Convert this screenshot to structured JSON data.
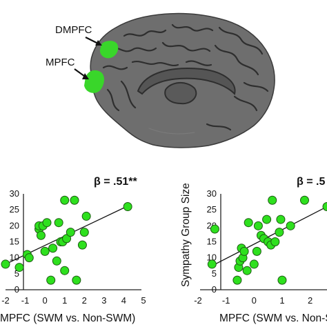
{
  "brain": {
    "regions": [
      {
        "name": "DMPFC",
        "color": "#39d62a"
      },
      {
        "name": "MPFC",
        "color": "#39d62a"
      }
    ]
  },
  "chart_data": [
    {
      "type": "scatter",
      "title": "",
      "xlabel": "MPFC (SWM vs. Non-SWM)",
      "ylabel": "",
      "annotation": "β = .51**",
      "xlim": [
        -2,
        5
      ],
      "ylim": [
        0,
        30
      ],
      "xticks": [
        -2,
        -1,
        0,
        1,
        2,
        3,
        4,
        5
      ],
      "yticks": [
        0,
        5,
        10,
        15,
        20,
        25,
        30
      ],
      "marker_color": "#2ee01e",
      "fit_line": {
        "x": [
          -2.0,
          4.2
        ],
        "y": [
          8.0,
          26.2
        ]
      },
      "points": [
        {
          "x": -2.0,
          "y": 8
        },
        {
          "x": -1.3,
          "y": 7
        },
        {
          "x": -0.9,
          "y": 11
        },
        {
          "x": -0.8,
          "y": 10
        },
        {
          "x": -0.3,
          "y": 19
        },
        {
          "x": -0.3,
          "y": 20
        },
        {
          "x": -0.2,
          "y": 17
        },
        {
          "x": -0.1,
          "y": 20
        },
        {
          "x": 0.1,
          "y": 21
        },
        {
          "x": 0.0,
          "y": 12
        },
        {
          "x": 0.3,
          "y": 3
        },
        {
          "x": 0.4,
          "y": 13
        },
        {
          "x": 0.6,
          "y": 9
        },
        {
          "x": 0.7,
          "y": 21
        },
        {
          "x": 0.8,
          "y": 15
        },
        {
          "x": 0.9,
          "y": 15
        },
        {
          "x": 1.0,
          "y": 28
        },
        {
          "x": 1.0,
          "y": 6
        },
        {
          "x": 1.1,
          "y": 16
        },
        {
          "x": 1.3,
          "y": 18
        },
        {
          "x": 1.5,
          "y": 28
        },
        {
          "x": 1.6,
          "y": 3
        },
        {
          "x": 1.9,
          "y": 14
        },
        {
          "x": 2.0,
          "y": 18
        },
        {
          "x": 2.1,
          "y": 23
        },
        {
          "x": 4.2,
          "y": 26
        }
      ]
    },
    {
      "type": "scatter",
      "title": "",
      "xlabel": "MPFC (SWM vs. Non-S",
      "ylabel": "Sympathy Group Size",
      "annotation": "β = .5",
      "xlim": [
        -2,
        2.6
      ],
      "ylim": [
        0,
        30
      ],
      "xticks": [
        -2,
        -1,
        0,
        1,
        2
      ],
      "yticks": [
        0,
        5,
        10,
        15,
        20,
        25,
        30
      ],
      "marker_color": "#2ee01e",
      "fit_line": {
        "x": [
          -1.5,
          2.6
        ],
        "y": [
          7.5,
          26.0
        ]
      },
      "points": [
        {
          "x": -1.4,
          "y": 19
        },
        {
          "x": -1.5,
          "y": 8
        },
        {
          "x": -0.6,
          "y": 3
        },
        {
          "x": -0.55,
          "y": 7
        },
        {
          "x": -0.5,
          "y": 9
        },
        {
          "x": -0.45,
          "y": 13
        },
        {
          "x": -0.4,
          "y": 10
        },
        {
          "x": -0.35,
          "y": 12
        },
        {
          "x": -0.25,
          "y": 6
        },
        {
          "x": -0.2,
          "y": 21
        },
        {
          "x": 0.0,
          "y": 8
        },
        {
          "x": 0.1,
          "y": 12
        },
        {
          "x": 0.15,
          "y": 20
        },
        {
          "x": 0.25,
          "y": 17
        },
        {
          "x": 0.35,
          "y": 16
        },
        {
          "x": 0.45,
          "y": 22
        },
        {
          "x": 0.5,
          "y": 15
        },
        {
          "x": 0.6,
          "y": 14
        },
        {
          "x": 0.65,
          "y": 28
        },
        {
          "x": 0.75,
          "y": 15
        },
        {
          "x": 0.9,
          "y": 18
        },
        {
          "x": 0.95,
          "y": 22
        },
        {
          "x": 1.0,
          "y": 3
        },
        {
          "x": 1.3,
          "y": 20
        },
        {
          "x": 1.8,
          "y": 28
        },
        {
          "x": 2.6,
          "y": 26
        }
      ]
    }
  ]
}
